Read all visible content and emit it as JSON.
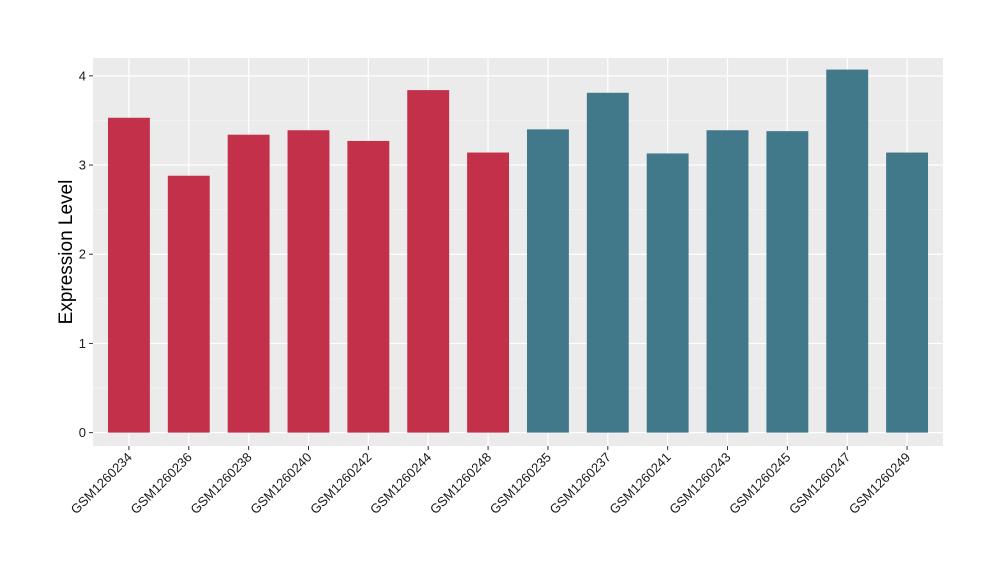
{
  "chart_data": {
    "type": "bar",
    "ylabel": "Expression Level",
    "xlabel": "",
    "title": "",
    "ylim": [
      -0.15,
      4.2
    ],
    "yticks": [
      0,
      1,
      2,
      3,
      4
    ],
    "grid": true,
    "legend": "none",
    "background_color": "#ebebeb",
    "categories": [
      "GSM1260234",
      "GSM1260236",
      "GSM1260238",
      "GSM1260240",
      "GSM1260242",
      "GSM1260244",
      "GSM1260248",
      "GSM1260235",
      "GSM1260237",
      "GSM1260241",
      "GSM1260243",
      "GSM1260245",
      "GSM1260247",
      "GSM1260249"
    ],
    "values": [
      3.53,
      2.88,
      3.34,
      3.39,
      3.27,
      3.84,
      3.14,
      3.4,
      3.81,
      3.13,
      3.39,
      3.38,
      4.07,
      3.14
    ],
    "bar_colors": [
      "#c3304a",
      "#c3304a",
      "#c3304a",
      "#c3304a",
      "#c3304a",
      "#c3304a",
      "#c3304a",
      "#41798a",
      "#41798a",
      "#41798a",
      "#41798a",
      "#41798a",
      "#41798a",
      "#41798a"
    ]
  }
}
